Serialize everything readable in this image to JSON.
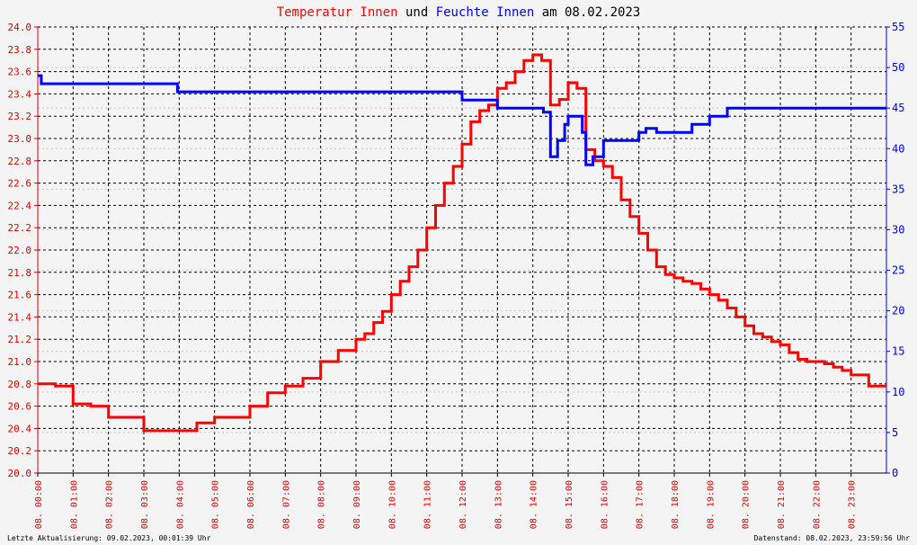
{
  "title": {
    "part1": "Temperatur Innen",
    "part2": " und ",
    "part3": "Feuchte Innen",
    "part4": " am 08.02.2023"
  },
  "footer": {
    "left": "Letzte Aktualisierung: 09.02.2023, 00:01:39 Uhr",
    "right": "Datenstand: 08.02.2023, 23:59:56 Uhr"
  },
  "colors": {
    "temperature": "#ff0000",
    "humidity": "#0000ff",
    "title_black": "#000000",
    "background": "#f4f4f4",
    "grid": "#000000",
    "left_axis": "#e00000",
    "right_axis": "#0000e0"
  },
  "chart_data": {
    "type": "line",
    "title": "Temperatur Innen und Feuchte Innen am 08.02.2023",
    "grid": true,
    "x_range": [
      0,
      24
    ],
    "x_tick_labels": [
      "08. 00:00",
      "08. 01:00",
      "08. 02:00",
      "08. 03:00",
      "08. 04:00",
      "08. 05:00",
      "08. 06:00",
      "08. 07:00",
      "08. 08:00",
      "08. 09:00",
      "08. 10:00",
      "08. 11:00",
      "08. 12:00",
      "08. 13:00",
      "08. 14:00",
      "08. 15:00",
      "08. 16:00",
      "08. 17:00",
      "08. 18:00",
      "08. 19:00",
      "08. 20:00",
      "08. 21:00",
      "08. 22:00",
      "08. 23:00"
    ],
    "y_left": {
      "range": [
        20.0,
        24.0
      ],
      "tick_labels": [
        "20.0",
        "20.2",
        "20.4",
        "20.6",
        "20.8",
        "21.0",
        "21.2",
        "21.4",
        "21.6",
        "21.8",
        "22.0",
        "22.2",
        "22.4",
        "22.6",
        "22.8",
        "23.0",
        "23.2",
        "23.4",
        "23.6",
        "23.8",
        "24.0"
      ]
    },
    "y_right": {
      "range": [
        0,
        55
      ],
      "tick_labels": [
        "0",
        "5",
        "10",
        "15",
        "20",
        "25",
        "30",
        "35",
        "40",
        "45",
        "50",
        "55"
      ]
    },
    "series": [
      {
        "name": "Temperatur Innen",
        "axis": "left",
        "x": [
          0,
          0.5,
          1.0,
          1.5,
          2.0,
          2.5,
          3.0,
          3.5,
          4.0,
          4.5,
          5.0,
          5.5,
          6.0,
          6.5,
          7.0,
          7.5,
          8.0,
          8.5,
          9.0,
          9.25,
          9.5,
          9.75,
          10.0,
          10.25,
          10.5,
          10.75,
          11.0,
          11.25,
          11.5,
          11.75,
          12.0,
          12.25,
          12.5,
          12.75,
          13.0,
          13.25,
          13.5,
          13.75,
          14.0,
          14.25,
          14.5,
          14.75,
          15.0,
          15.25,
          15.5,
          15.75,
          16.0,
          16.25,
          16.5,
          16.75,
          17.0,
          17.25,
          17.5,
          17.75,
          18.0,
          18.25,
          18.5,
          18.75,
          19.0,
          19.25,
          19.5,
          19.75,
          20.0,
          20.25,
          20.5,
          20.75,
          21.0,
          21.25,
          21.5,
          21.75,
          22.0,
          22.25,
          22.5,
          22.75,
          23.0,
          23.5,
          24.0
        ],
        "y": [
          20.8,
          20.78,
          20.62,
          20.6,
          20.5,
          20.5,
          20.38,
          20.38,
          20.38,
          20.45,
          20.5,
          20.5,
          20.6,
          20.72,
          20.78,
          20.85,
          21.0,
          21.1,
          21.2,
          21.25,
          21.35,
          21.45,
          21.6,
          21.72,
          21.85,
          22.0,
          22.2,
          22.4,
          22.6,
          22.75,
          22.95,
          23.15,
          23.25,
          23.3,
          23.45,
          23.5,
          23.6,
          23.7,
          23.75,
          23.7,
          23.3,
          23.35,
          23.5,
          23.45,
          22.9,
          22.8,
          22.75,
          22.65,
          22.45,
          22.3,
          22.15,
          22.0,
          21.85,
          21.78,
          21.75,
          21.72,
          21.7,
          21.65,
          21.6,
          21.55,
          21.48,
          21.4,
          21.32,
          21.25,
          21.22,
          21.18,
          21.15,
          21.08,
          21.02,
          21.0,
          21.0,
          20.98,
          20.95,
          20.92,
          20.88,
          20.78,
          20.78
        ]
      },
      {
        "name": "Feuchte Innen",
        "axis": "right",
        "x": [
          0,
          0.1,
          0.1,
          3.9,
          3.95,
          4.0,
          11.9,
          12.0,
          12.5,
          13.0,
          14.0,
          14.3,
          14.5,
          14.7,
          14.9,
          15.0,
          15.2,
          15.4,
          15.5,
          15.7,
          16.0,
          16.5,
          17.0,
          17.2,
          17.5,
          18.0,
          18.5,
          19.0,
          19.5,
          20.0,
          21.0,
          22.0,
          23.0,
          24.0
        ],
        "y": [
          49,
          49,
          48,
          48,
          47,
          47,
          47,
          46,
          46,
          45,
          45,
          44.5,
          39,
          41,
          43,
          44,
          44,
          42,
          38,
          39,
          41,
          41,
          42,
          42.5,
          42,
          42,
          43,
          44,
          45,
          45,
          45,
          45,
          45,
          45
        ]
      }
    ]
  }
}
